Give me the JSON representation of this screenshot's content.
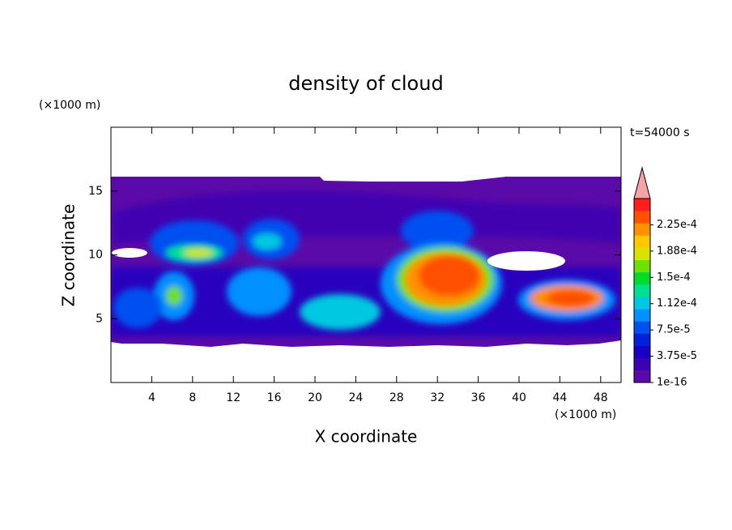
{
  "chart_data": {
    "type": "contour",
    "title": "density of cloud",
    "xlabel": "X coordinate",
    "ylabel": "Z coordinate",
    "x_unit": "(×1000 m)",
    "y_unit": "(×1000 m)",
    "annotation": "t=54000 s",
    "xlim": [
      0,
      50
    ],
    "xticks": [
      4,
      8,
      12,
      16,
      20,
      24,
      28,
      32,
      36,
      40,
      44,
      48
    ],
    "ylim": [
      0,
      20
    ],
    "yticks": [
      5,
      10,
      15
    ],
    "colorbar": {
      "lim": [
        0,
        0.0002625
      ],
      "ticks": [
        {
          "value": 1e-16,
          "label": "1e-16"
        },
        {
          "value": 3.75e-05,
          "label": "3.75e-5"
        },
        {
          "value": 7.5e-05,
          "label": "7.5e-5"
        },
        {
          "value": 0.0001125,
          "label": "1.12e-4"
        },
        {
          "value": 0.00015,
          "label": "1.5e-4"
        },
        {
          "value": 0.0001875,
          "label": "1.88e-4"
        },
        {
          "value": 0.000225,
          "label": "2.25e-4"
        }
      ],
      "colors": [
        "#5a0aa8",
        "#3a04b4",
        "#1a00c4",
        "#0020dc",
        "#0050f0",
        "#0090ff",
        "#00c8e0",
        "#00e090",
        "#00dc28",
        "#70e000",
        "#d8e400",
        "#ffc800",
        "#ff9000",
        "#ff5000",
        "#ff1e1e"
      ],
      "extend_color": "#f4a4a4"
    }
  }
}
